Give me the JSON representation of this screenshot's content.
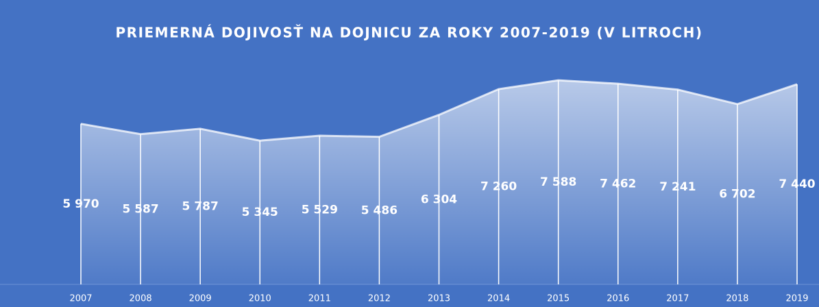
{
  "chart_data": {
    "type": "area",
    "title": "PRIEMERNÁ DOJIVOSŤ NA DOJNICU ZA ROKY 2007-2019 (V LITROCH)",
    "categories": [
      "2007",
      "2008",
      "2009",
      "2010",
      "2011",
      "2012",
      "2013",
      "2014",
      "2015",
      "2016",
      "2017",
      "2018",
      "2019"
    ],
    "values": [
      5970,
      5587,
      5787,
      5345,
      5529,
      5486,
      6304,
      7260,
      7588,
      7462,
      7241,
      6702,
      7440
    ],
    "value_labels": [
      "5 970",
      "5 587",
      "5 787",
      "5 345",
      "5 529",
      "5 486",
      "6 304",
      "7 260",
      "7 588",
      "7 462",
      "7 241",
      "6 702",
      "7 440"
    ],
    "color": "#ffffff",
    "ylim": [
      0,
      8000
    ]
  }
}
